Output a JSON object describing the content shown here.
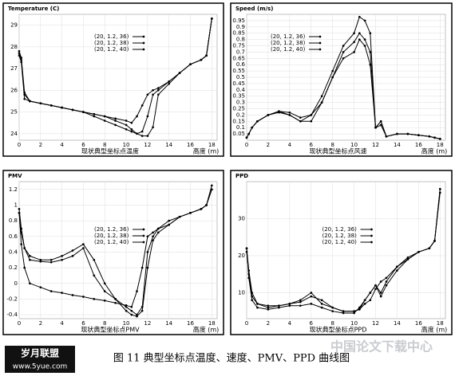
{
  "chart_data": [
    {
      "type": "line",
      "title": "Temperature (C)",
      "subtitle": "现状典型坐标点温度",
      "x_label": "高度 (m)",
      "x": [
        0,
        0.2,
        0.5,
        1,
        2,
        3,
        4,
        5,
        6,
        7,
        8,
        9,
        10,
        10.5,
        11,
        11.5,
        12,
        12.5,
        13,
        14,
        15,
        16,
        17,
        17.5,
        18
      ],
      "xlim": [
        0,
        18.5
      ],
      "xticks": [
        0,
        2,
        4,
        6,
        8,
        10,
        12,
        14,
        16,
        18
      ],
      "ylim": [
        23.7,
        29.5
      ],
      "yticks": [
        24,
        25,
        26,
        27,
        28,
        29
      ],
      "grid": true,
      "legend": "upper center",
      "series": [
        {
          "name": "(20, 1.2, 36)",
          "color": "#000000",
          "values": [
            27.8,
            27.5,
            25.9,
            25.5,
            25.4,
            25.3,
            25.2,
            25.1,
            25.0,
            24.8,
            24.6,
            24.4,
            24.2,
            24.1,
            24.0,
            24.1,
            24.8,
            25.8,
            26.0,
            26.4,
            26.8,
            27.2,
            27.4,
            27.6,
            29.3
          ]
        },
        {
          "name": "(20, 1.2, 38)",
          "color": "#000000",
          "values": [
            27.7,
            27.4,
            25.8,
            25.5,
            25.4,
            25.3,
            25.2,
            25.1,
            25.0,
            24.9,
            24.8,
            24.6,
            24.4,
            24.2,
            24.0,
            23.9,
            23.9,
            24.3,
            25.8,
            26.3,
            26.8,
            27.2,
            27.4,
            27.6,
            29.3
          ]
        },
        {
          "name": "(20, 1.2, 40)",
          "color": "#000000",
          "values": [
            27.6,
            27.3,
            25.6,
            25.5,
            25.4,
            25.3,
            25.2,
            25.1,
            25.0,
            24.9,
            24.8,
            24.7,
            24.6,
            24.5,
            24.8,
            25.3,
            25.8,
            26.0,
            26.1,
            26.4,
            26.8,
            27.2,
            27.4,
            27.6,
            29.3
          ]
        }
      ]
    },
    {
      "type": "line",
      "title": "Speed (m/s)",
      "subtitle": "现状典型坐标点风速",
      "x_label": "高度 (m)",
      "x": [
        0,
        0.2,
        0.5,
        1,
        2,
        3,
        4,
        5,
        6,
        7,
        8,
        9,
        10,
        10.5,
        11,
        11.5,
        12,
        12.5,
        13,
        14,
        15,
        16,
        17,
        17.5,
        18
      ],
      "xlim": [
        0,
        18.5
      ],
      "xticks": [
        0,
        2,
        4,
        6,
        8,
        10,
        12,
        14,
        16,
        18
      ],
      "ylim": [
        0,
        1.0
      ],
      "yticks": [
        0.05,
        0.1,
        0.15,
        0.2,
        0.25,
        0.3,
        0.35,
        0.4,
        0.45,
        0.5,
        0.55,
        0.6,
        0.65,
        0.7,
        0.75,
        0.8,
        0.85,
        0.9,
        0.95
      ],
      "grid": true,
      "legend": "upper left",
      "series": [
        {
          "name": "(20, 1.2, 36)",
          "color": "#000000",
          "values": [
            0.02,
            0.05,
            0.1,
            0.15,
            0.2,
            0.22,
            0.2,
            0.15,
            0.2,
            0.35,
            0.55,
            0.75,
            0.85,
            0.98,
            0.95,
            0.85,
            0.1,
            0.15,
            0.03,
            0.05,
            0.05,
            0.04,
            0.03,
            0.02,
            0.01
          ]
        },
        {
          "name": "(20, 1.2, 38)",
          "color": "#000000",
          "values": [
            0.02,
            0.05,
            0.1,
            0.15,
            0.2,
            0.23,
            0.22,
            0.18,
            0.2,
            0.3,
            0.5,
            0.7,
            0.78,
            0.85,
            0.8,
            0.7,
            0.1,
            0.15,
            0.03,
            0.05,
            0.05,
            0.04,
            0.03,
            0.02,
            0.01
          ]
        },
        {
          "name": "(20, 1.2, 40)",
          "color": "#000000",
          "values": [
            0.02,
            0.05,
            0.1,
            0.15,
            0.2,
            0.23,
            0.2,
            0.15,
            0.15,
            0.3,
            0.5,
            0.65,
            0.7,
            0.8,
            0.75,
            0.6,
            0.1,
            0.12,
            0.03,
            0.05,
            0.05,
            0.04,
            0.03,
            0.02,
            0.01
          ]
        }
      ]
    },
    {
      "type": "line",
      "title": "PMV",
      "subtitle": "现状典型坐标点PMV",
      "x_label": "高度 (m)",
      "x": [
        0,
        0.2,
        0.5,
        1,
        2,
        3,
        4,
        5,
        6,
        7,
        8,
        9,
        10,
        10.5,
        11,
        11.5,
        12,
        12.5,
        13,
        14,
        15,
        16,
        17,
        17.5,
        18
      ],
      "xlim": [
        0,
        18.5
      ],
      "xticks": [
        0,
        2,
        4,
        6,
        8,
        10,
        12,
        14,
        16,
        18
      ],
      "ylim": [
        -0.45,
        1.3
      ],
      "yticks": [
        -0.4,
        -0.2,
        0,
        0.2,
        0.4,
        0.6,
        0.8,
        1,
        1.2
      ],
      "grid": true,
      "legend": "upper center",
      "series": [
        {
          "name": "(20, 1.2, 36)",
          "color": "#000000",
          "values": [
            0.95,
            0.7,
            0.45,
            0.3,
            0.28,
            0.27,
            0.3,
            0.35,
            0.45,
            0.1,
            -0.1,
            -0.2,
            -0.3,
            -0.35,
            -0.4,
            -0.3,
            0.4,
            0.6,
            0.7,
            0.8,
            0.85,
            0.9,
            0.95,
            1.0,
            1.2
          ]
        },
        {
          "name": "(20, 1.2, 38)",
          "color": "#000000",
          "values": [
            0.9,
            0.65,
            0.45,
            0.35,
            0.3,
            0.3,
            0.35,
            0.42,
            0.5,
            0.3,
            0.0,
            -0.2,
            -0.35,
            -0.4,
            -0.42,
            -0.35,
            0.2,
            0.55,
            0.65,
            0.75,
            0.85,
            0.9,
            0.95,
            1.0,
            1.2
          ]
        },
        {
          "name": "(20, 1.2, 40)",
          "color": "#000000",
          "values": [
            0.9,
            0.5,
            0.2,
            0.0,
            -0.05,
            -0.1,
            -0.12,
            -0.15,
            -0.17,
            -0.2,
            -0.22,
            -0.25,
            -0.28,
            -0.3,
            -0.1,
            0.2,
            0.6,
            0.65,
            0.7,
            0.75,
            0.85,
            0.9,
            0.95,
            1.0,
            1.25
          ]
        }
      ]
    },
    {
      "type": "line",
      "title": "PPD",
      "subtitle": "现状典型坐标点PPD",
      "x_label": "高度 (m)",
      "x": [
        0,
        0.2,
        0.5,
        1,
        2,
        3,
        4,
        5,
        6,
        7,
        8,
        9,
        10,
        10.5,
        11,
        11.5,
        12,
        12.5,
        13,
        14,
        15,
        16,
        17,
        17.5,
        18
      ],
      "xlim": [
        0,
        18.5
      ],
      "xticks": [
        0,
        2,
        4,
        6,
        8,
        10,
        12,
        14,
        16,
        18
      ],
      "ylim": [
        3,
        40
      ],
      "yticks": [
        10,
        20,
        30
      ],
      "grid": true,
      "legend": "upper center",
      "series": [
        {
          "name": "(20, 1.2, 36)",
          "color": "#000000",
          "values": [
            22,
            16,
            10,
            7,
            6,
            6.5,
            7,
            8,
            10,
            7,
            6,
            5,
            5,
            5.5,
            8,
            10,
            12,
            10,
            13,
            17,
            19.5,
            21,
            22,
            24,
            38
          ]
        },
        {
          "name": "(20, 1.2, 38)",
          "color": "#000000",
          "values": [
            21,
            15,
            9,
            7,
            6.5,
            6.5,
            7,
            7.5,
            9,
            8,
            6,
            5,
            5,
            5.5,
            7,
            8,
            11,
            13,
            14,
            17,
            19,
            21,
            22,
            24,
            37
          ]
        },
        {
          "name": "(20, 1.2, 40)",
          "color": "#000000",
          "values": [
            22,
            14,
            8,
            6,
            5.5,
            6,
            6.5,
            6.5,
            7,
            6,
            5,
            4.5,
            4.5,
            6,
            8,
            10,
            12,
            9,
            12,
            16,
            19,
            21,
            22,
            24,
            38
          ]
        }
      ]
    }
  ],
  "figure_caption": "图 11 典型坐标点温度、速度、PMV、PPD 曲线图",
  "logo": "岁月联盟",
  "logo_url": "www.5yue.com",
  "watermark": "中国论文下载中心"
}
